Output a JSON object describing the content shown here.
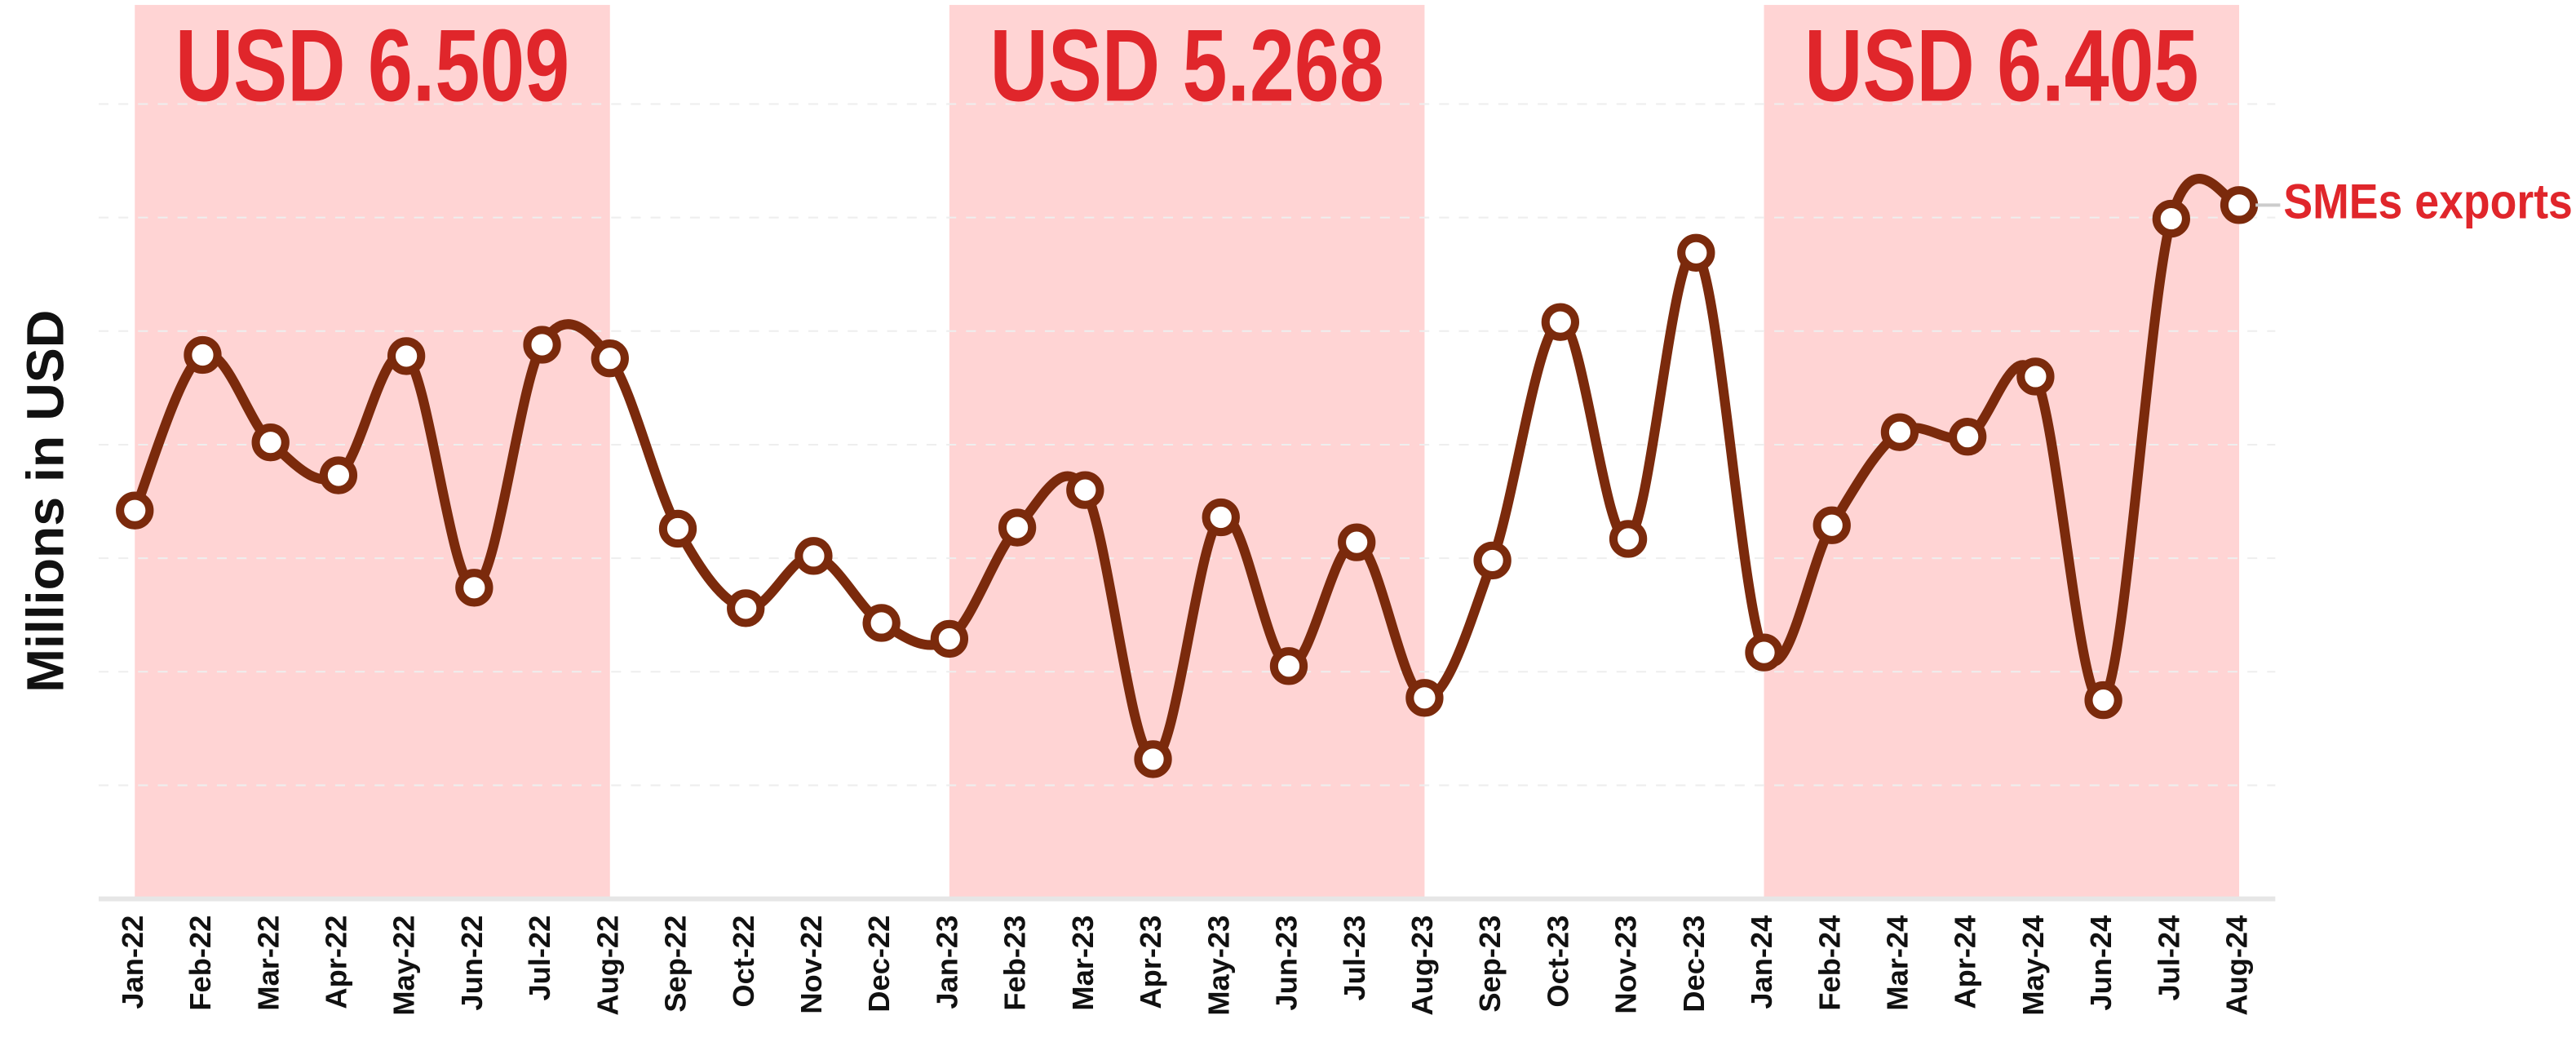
{
  "chart_data": {
    "type": "line",
    "y_label": "Millions in USD",
    "categories": [
      "Jan-22",
      "Feb-22",
      "Mar-22",
      "Apr-22",
      "May-22",
      "Jun-22",
      "Jul-22",
      "Aug-22",
      "Sep-22",
      "Oct-22",
      "Nov-22",
      "Dec-22",
      "Jan-23",
      "Feb-23",
      "Mar-23",
      "Apr-23",
      "May-23",
      "Jun-23",
      "Jul-23",
      "Aug-23",
      "Sep-23",
      "Oct-23",
      "Nov-23",
      "Dec-23",
      "Jan-24",
      "Feb-24",
      "Mar-24",
      "Apr-24",
      "May-24",
      "Jun-24",
      "Jul-24",
      "Aug-24"
    ],
    "series": [
      {
        "name": "SMEs exports",
        "color": "#7b2a0c",
        "label_color": "#e0262b",
        "values": [
          3.42,
          4.79,
          4.02,
          3.73,
          4.78,
          2.74,
          4.88,
          4.76,
          3.26,
          2.56,
          3.02,
          2.43,
          2.29,
          3.27,
          3.6,
          1.23,
          3.36,
          2.05,
          3.14,
          1.77,
          2.98,
          5.08,
          3.17,
          5.69,
          2.17,
          3.29,
          4.11,
          4.07,
          4.6,
          1.75,
          5.99,
          6.11
        ]
      }
    ],
    "highlights": [
      {
        "start": "Jan-22",
        "end": "Aug-22",
        "label": "USD 6.509"
      },
      {
        "start": "Jan-23",
        "end": "Aug-23",
        "label": "USD 5.268"
      },
      {
        "start": "Jan-24",
        "end": "Aug-24",
        "label": "USD 6.405"
      }
    ],
    "highlight_color": "#ffd4d4",
    "ylim": [
      0,
      8
    ],
    "yticks": [
      0,
      1,
      2,
      3,
      4,
      5,
      6,
      7
    ],
    "grid": true
  }
}
